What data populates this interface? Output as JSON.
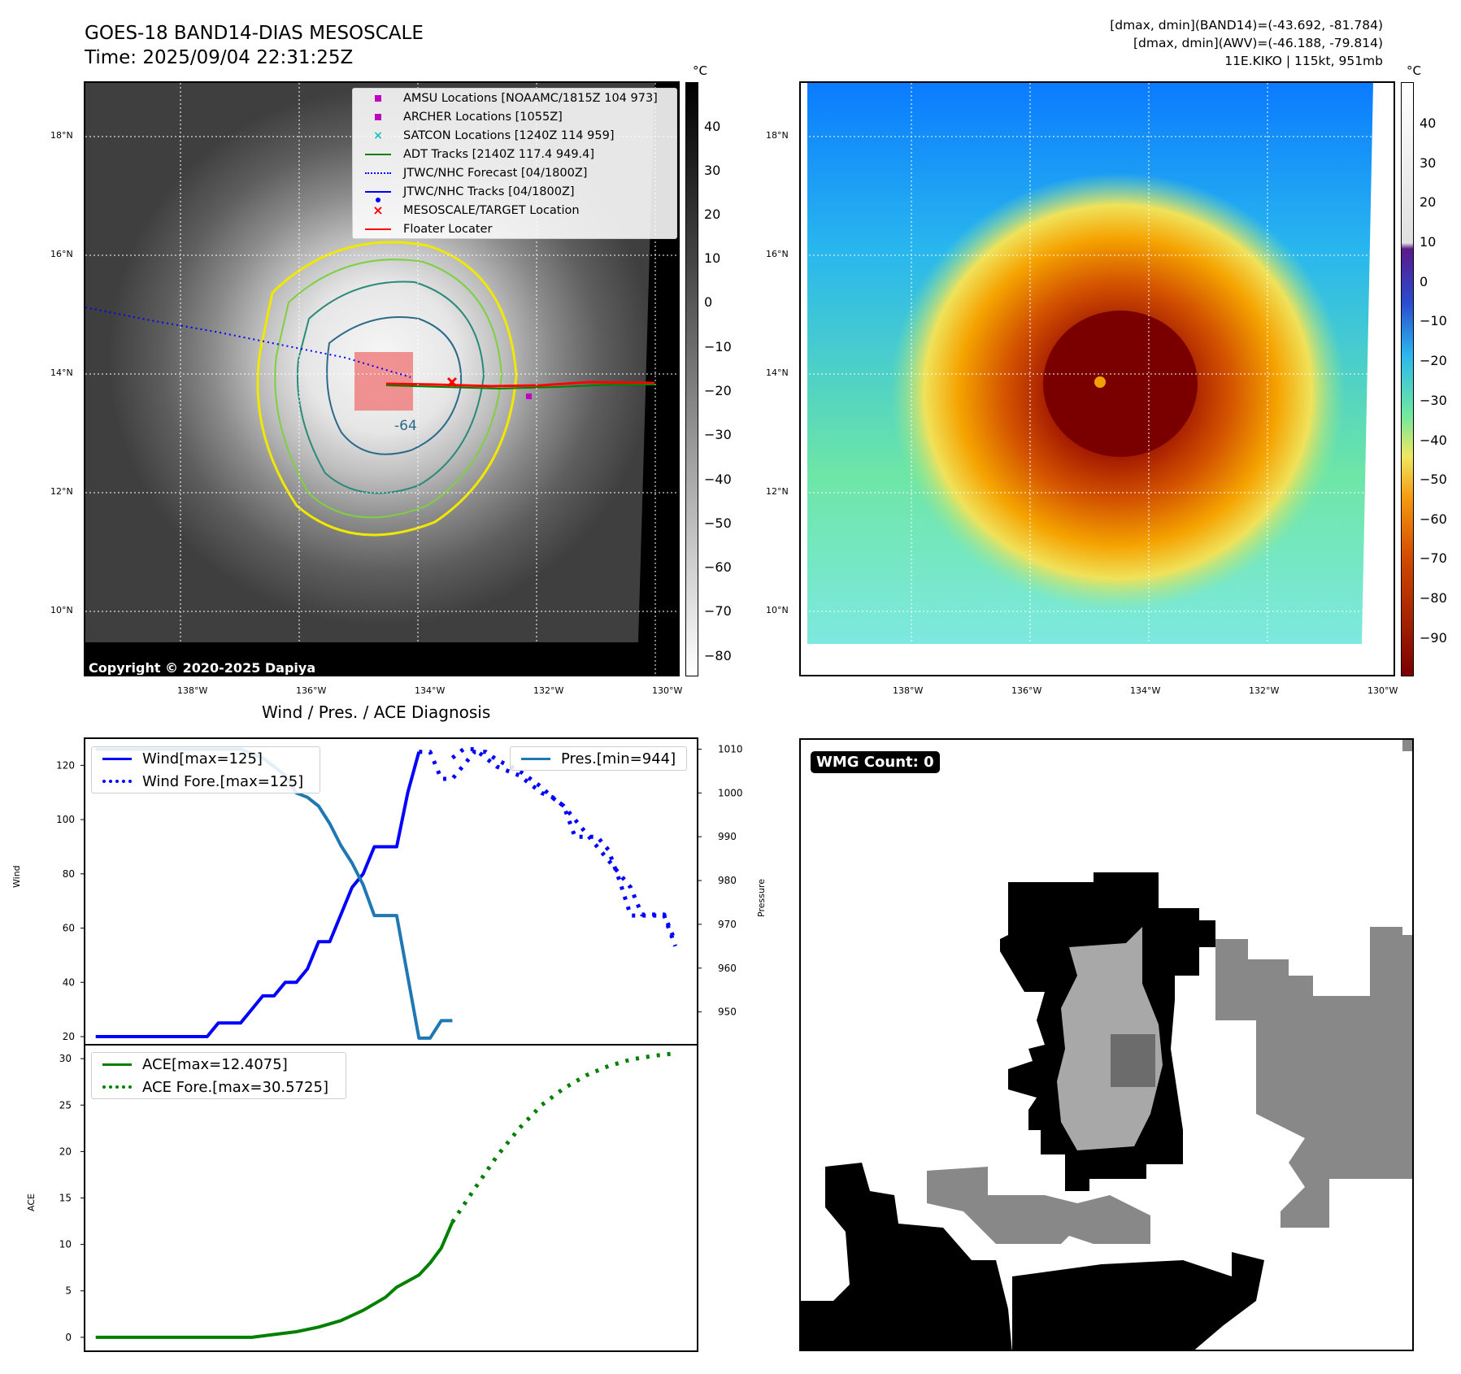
{
  "header": {
    "title": "GOES-18 BAND14-DIAS MESOSCALE",
    "time": "Time: 2025/09/04 22:31:25Z",
    "dmax_band14": "[dmax, dmin](BAND14)=(-43.692, -81.784)",
    "dmax_awv": "[dmax, dmin](AWV)=(-46.188, -79.814)",
    "storm": "11E.KIKO | 115kt, 951mb"
  },
  "ir_panel": {
    "copyright": "Copyright © 2020-2025 Dapiya",
    "contour_label": "-64",
    "legend": [
      {
        "label": "AMSU Locations [NOAAMC/1815Z 104 973]",
        "marker": "square",
        "color": "#c000c0"
      },
      {
        "label": "ARCHER Locations [1055Z]",
        "marker": "square",
        "color": "#c000c0"
      },
      {
        "label": "SATCON Locations [1240Z 114 959]",
        "marker": "x",
        "color": "#19c0c0"
      },
      {
        "label": "ADT Tracks [2140Z 117.4 949.4]",
        "marker": "line",
        "color": "#008000"
      },
      {
        "label": "JTWC/NHC Forecast [04/1800Z]",
        "marker": "dotted",
        "color": "#0000ff"
      },
      {
        "label": "JTWC/NHC Tracks [04/1800Z]",
        "marker": "line-dot",
        "color": "#0000ff"
      },
      {
        "label": "MESOSCALE/TARGET Location",
        "marker": "x",
        "color": "#ff0000"
      },
      {
        "label": "Floater Locater",
        "marker": "line",
        "color": "#ff0000"
      }
    ]
  },
  "maps": {
    "lat_labels": [
      "18°N",
      "16°N",
      "14°N",
      "12°N",
      "10°N"
    ],
    "lon_labels": [
      "138°W",
      "136°W",
      "134°W",
      "132°W",
      "130°W"
    ]
  },
  "colorbar_ir": {
    "unit": "°C",
    "ticks": [
      "40",
      "30",
      "20",
      "10",
      "0",
      "−10",
      "−20",
      "−30",
      "−40",
      "−50",
      "−60",
      "−70",
      "−80"
    ]
  },
  "colorbar_wv": {
    "unit": "°C",
    "ticks": [
      "40",
      "30",
      "20",
      "10",
      "0",
      "−10",
      "−20",
      "−30",
      "−40",
      "−50",
      "−60",
      "−70",
      "−80",
      "−90"
    ]
  },
  "wmg": {
    "label": "WMG Count: 0"
  },
  "chart_data": [
    {
      "type": "line",
      "title": "Wind / Pres. / ACE Diagnosis",
      "ylabel": "Wind",
      "y2label": "Pressure",
      "ylim": [
        17,
        130
      ],
      "y2lim": [
        942.5,
        1012.5
      ],
      "yticks": [
        20,
        40,
        60,
        80,
        100,
        120
      ],
      "y2ticks": [
        950,
        960,
        970,
        980,
        990,
        1000,
        1010
      ],
      "xlim": [
        0,
        55
      ],
      "series": [
        {
          "name": "Wind[max=125]",
          "color": "#0000ff",
          "style": "solid",
          "axis": "y",
          "x": [
            1,
            2,
            3,
            4,
            5,
            6,
            7,
            8,
            9,
            10,
            11,
            12,
            13,
            14,
            15,
            16,
            17,
            18,
            19,
            20,
            21,
            22,
            23,
            24,
            25,
            26,
            27,
            28,
            29,
            30
          ],
          "y": [
            20,
            20,
            20,
            20,
            20,
            20,
            20,
            20,
            20,
            20,
            20,
            25,
            25,
            25,
            30,
            35,
            35,
            40,
            40,
            45,
            55,
            55,
            65,
            75,
            80,
            90,
            90,
            90,
            110,
            125
          ]
        },
        {
          "name": "Wind Fore.[max=125]",
          "color": "#0000ff",
          "style": "dotted",
          "axis": "y",
          "x": [
            30,
            31,
            32,
            33,
            34,
            35,
            36,
            37,
            38,
            39,
            40,
            41,
            42,
            43,
            44,
            45,
            46,
            47,
            48,
            49,
            50,
            51,
            52,
            53
          ],
          "y": [
            125,
            125,
            115,
            115,
            120,
            125,
            125,
            122,
            120,
            118,
            115,
            112,
            108,
            105,
            100,
            95,
            90,
            85,
            80,
            75,
            65,
            65,
            65,
            55
          ]
        },
        {
          "name": "Pres.[min=944]",
          "color": "#1f77b4",
          "style": "solid",
          "axis": "y2",
          "x": [
            1,
            2,
            3,
            4,
            5,
            6,
            7,
            8,
            9,
            10,
            11,
            12,
            13,
            14,
            15,
            16,
            17,
            18,
            19,
            20,
            21,
            22,
            23,
            24,
            25,
            26,
            27,
            28,
            29,
            30,
            31,
            32,
            33
          ],
          "y": [
            1010,
            1010,
            1010,
            1010,
            1010,
            1010,
            1010,
            1010,
            1010,
            1010,
            1010,
            1010,
            1010,
            1010,
            1009,
            1008,
            1006,
            1004,
            1000,
            999,
            997,
            993,
            988,
            984,
            979,
            972,
            972,
            972,
            958,
            944,
            944,
            948,
            948
          ]
        },
        {
          "name": "",
          "color": "#0000ff",
          "style": "dotted",
          "axis": "y2",
          "x": [
            33,
            34,
            35,
            36,
            37,
            38,
            39,
            40,
            41,
            42,
            43,
            44,
            45,
            46,
            47,
            48,
            49,
            50,
            51,
            52,
            53
          ],
          "y": [
            1008,
            1010,
            1010,
            1008,
            1006,
            1005,
            1004,
            1002,
            1000,
            999,
            997,
            990,
            990,
            990,
            987,
            980,
            972,
            972,
            972,
            972,
            965
          ]
        }
      ]
    },
    {
      "type": "line",
      "ylabel": "ACE",
      "ylim": [
        -1.5,
        31.5
      ],
      "yticks": [
        0,
        5,
        10,
        15,
        20,
        25,
        30
      ],
      "xlim": [
        0,
        55
      ],
      "series": [
        {
          "name": "ACE[max=12.4075]",
          "color": "#008000",
          "style": "solid",
          "x": [
            1,
            3,
            5,
            7,
            9,
            11,
            13,
            15,
            17,
            19,
            21,
            23,
            25,
            27,
            28,
            30,
            31,
            32,
            33
          ],
          "y": [
            0,
            0,
            0,
            0,
            0,
            0,
            0,
            0,
            0.3,
            0.6,
            1.1,
            1.8,
            2.9,
            4.3,
            5.4,
            6.7,
            8.0,
            9.6,
            12.4
          ]
        },
        {
          "name": "ACE Fore.[max=30.5725]",
          "color": "#008000",
          "style": "dotted",
          "x": [
            33,
            35,
            37,
            39,
            41,
            43,
            45,
            47,
            49,
            51,
            53
          ],
          "y": [
            12.4,
            16.0,
            19.5,
            22.5,
            25.0,
            26.8,
            28.2,
            29.2,
            29.9,
            30.3,
            30.57
          ]
        }
      ]
    }
  ]
}
